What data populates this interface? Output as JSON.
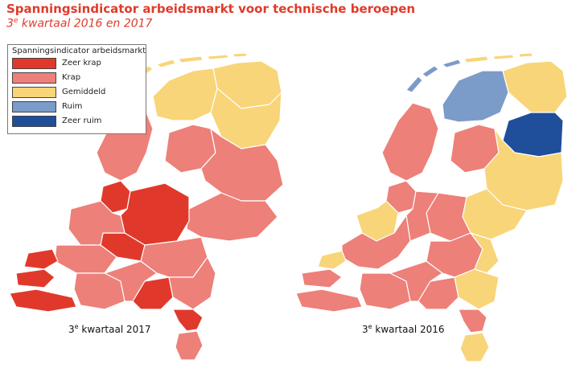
{
  "header": {
    "title": "Spanningsindicator arbeidsmarkt voor technische beroepen",
    "subtitle_ordinal": "3",
    "subtitle_sup": "e",
    "subtitle_rest": " kwartaal 2016 en 2017"
  },
  "legend": {
    "title": "Spanningsindicator arbeidsmarkt",
    "items": [
      {
        "label": "Zeer krap",
        "color": "#e0392b"
      },
      {
        "label": "Krap",
        "color": "#ed8079"
      },
      {
        "label": "Gemiddeld",
        "color": "#f8d578"
      },
      {
        "label": "Ruim",
        "color": "#7b9bc8"
      },
      {
        "label": "Zeer ruim",
        "color": "#1f4e9a"
      }
    ]
  },
  "maps": [
    {
      "ordinal": "3",
      "sup": "e",
      "label": " kwartaal 2017"
    },
    {
      "ordinal": "3",
      "sup": "e",
      "label": " kwartaal 2016"
    }
  ]
}
